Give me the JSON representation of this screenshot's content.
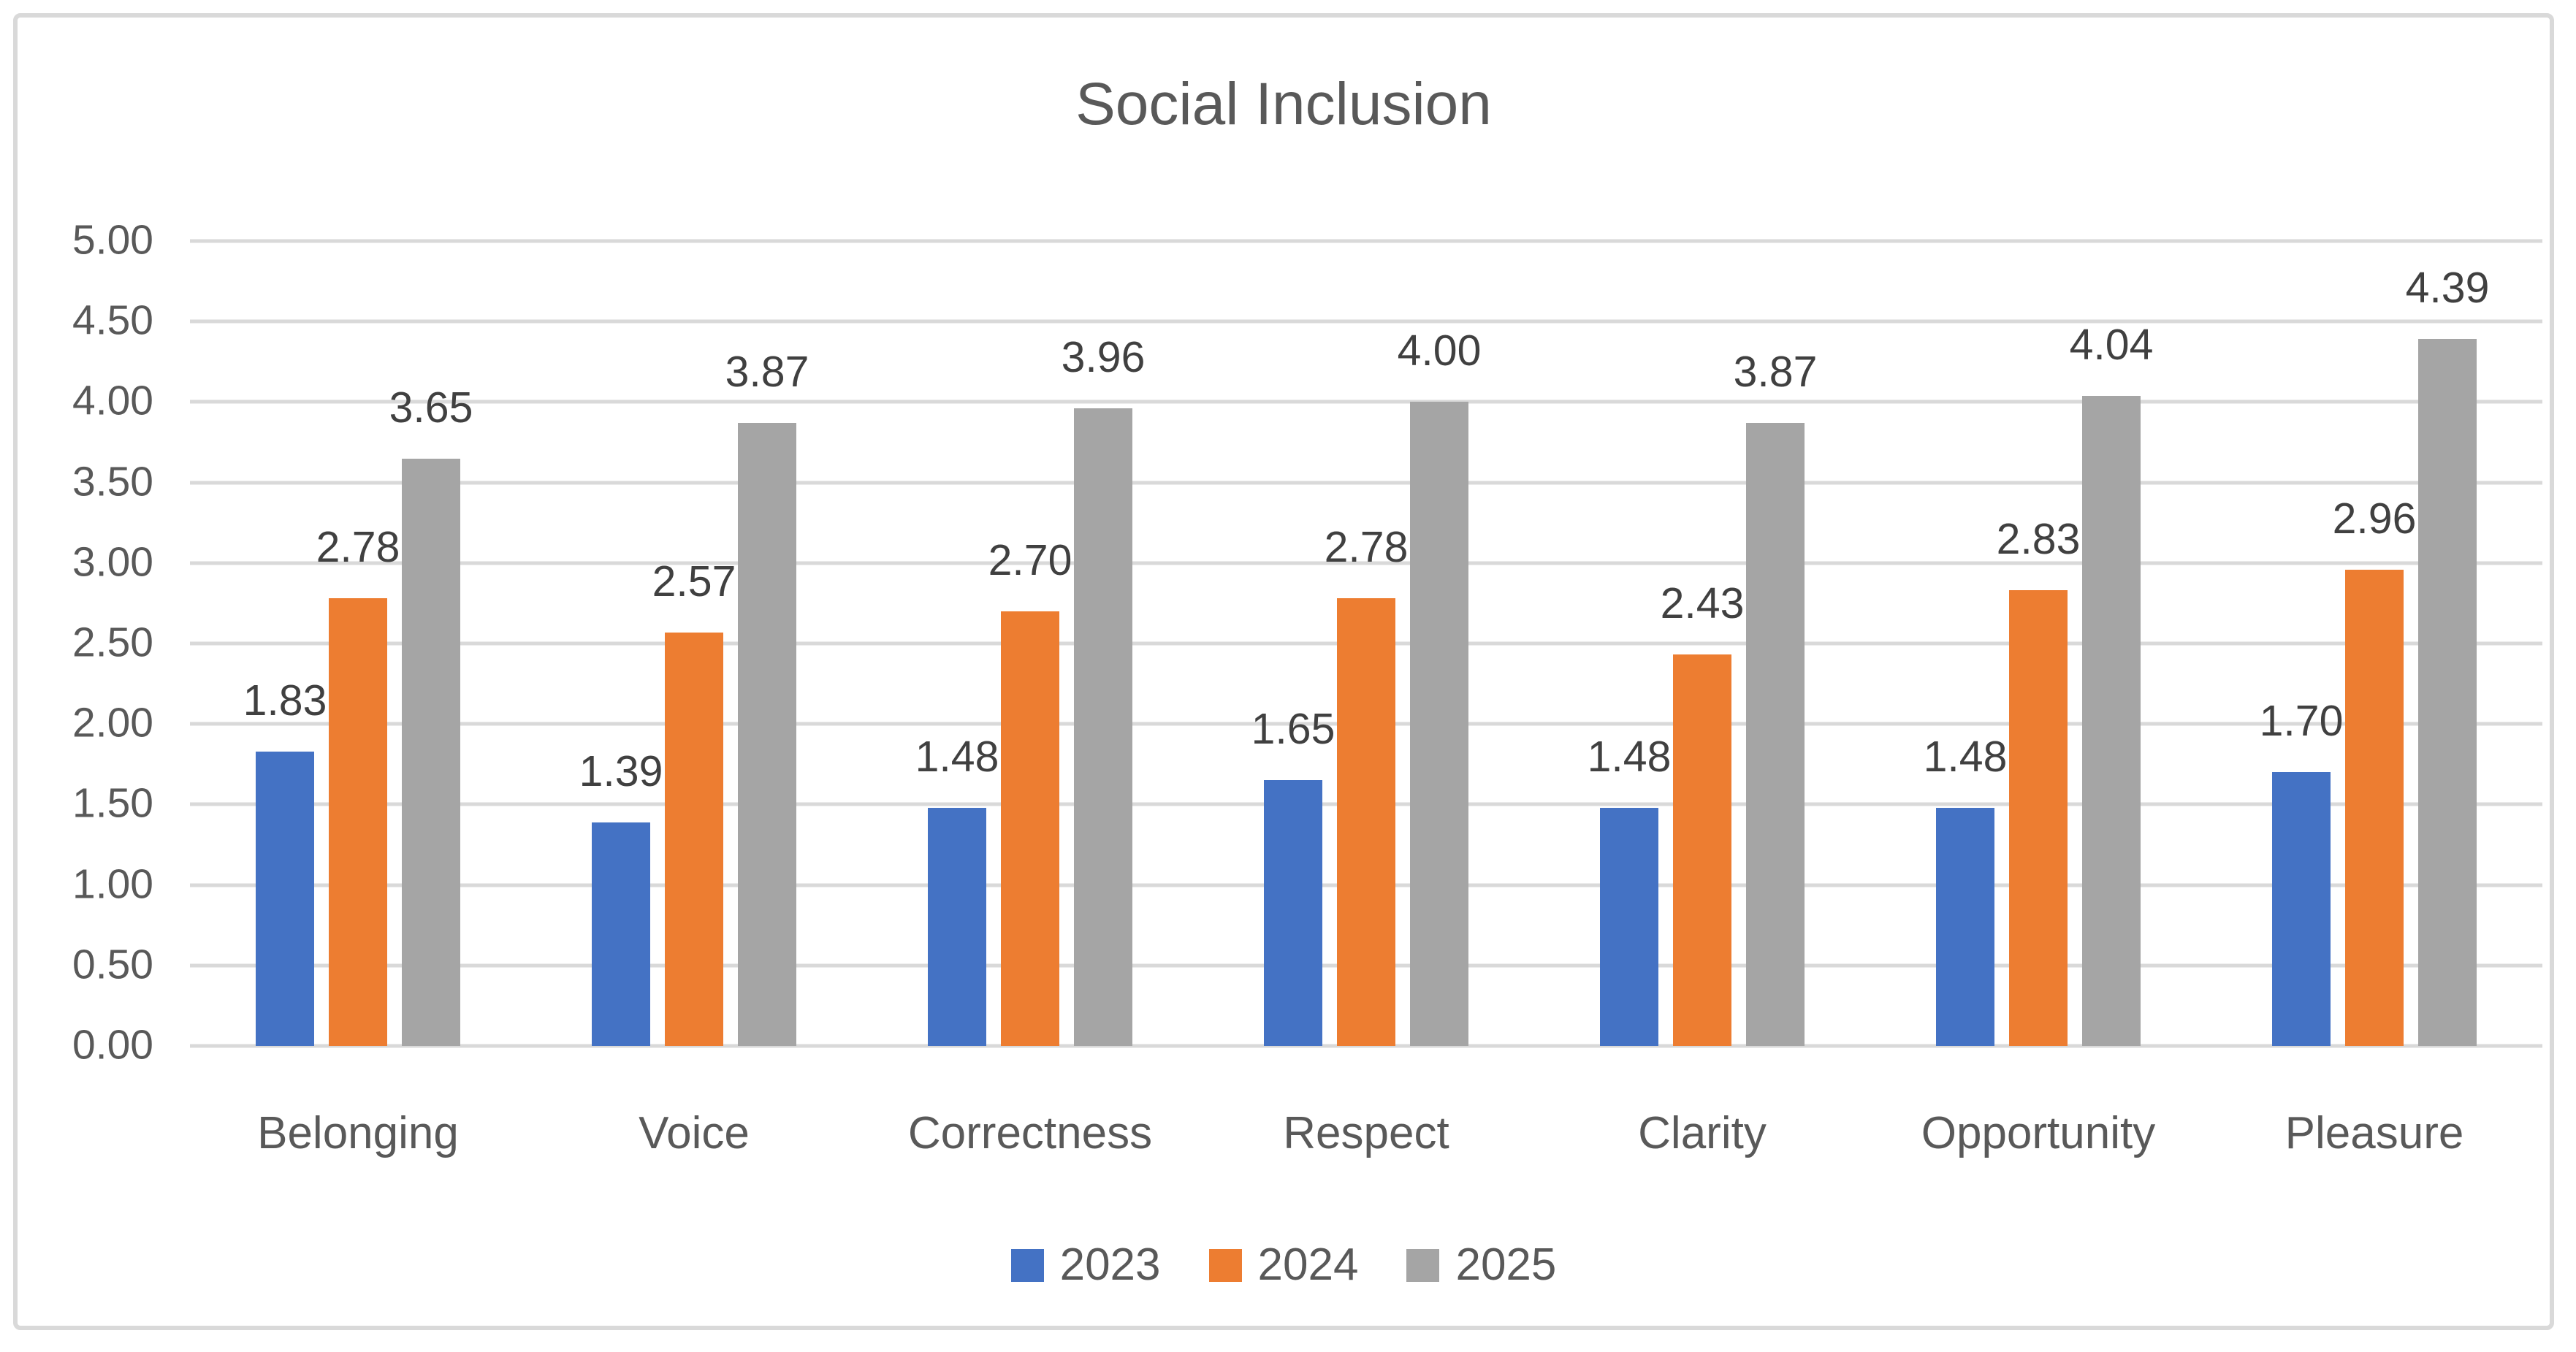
{
  "chart_data": {
    "type": "bar",
    "title": "Social Inclusion",
    "categories": [
      "Belonging",
      "Voice",
      "Correctness",
      "Respect",
      "Clarity",
      "Opportunity",
      "Pleasure"
    ],
    "series": [
      {
        "name": "2023",
        "color": "#4472C4",
        "values": [
          1.83,
          1.39,
          1.48,
          1.65,
          1.48,
          1.48,
          1.7
        ]
      },
      {
        "name": "2024",
        "color": "#ED7D31",
        "values": [
          2.78,
          2.57,
          2.7,
          2.78,
          2.43,
          2.83,
          2.96
        ]
      },
      {
        "name": "2025",
        "color": "#A5A5A5",
        "values": [
          3.65,
          3.87,
          3.96,
          4.0,
          3.87,
          4.04,
          4.39
        ]
      }
    ],
    "ylim": [
      0,
      5
    ],
    "y_ticks": [
      "5.00",
      "4.50",
      "4.00",
      "3.50",
      "3.00",
      "2.50",
      "2.00",
      "1.50",
      "1.00",
      "0.50",
      "0.00"
    ],
    "grid": true,
    "data_labels": true,
    "label_decimals": 2,
    "legend_position": "bottom",
    "xlabel": "",
    "ylabel": ""
  },
  "styles": {
    "title_color": "#595959",
    "axis_text_color": "#595959",
    "data_label_color": "#404040",
    "gridline_color": "#D9D9D9",
    "frame_border_color": "#D9D9D9",
    "background": "#FFFFFF"
  }
}
